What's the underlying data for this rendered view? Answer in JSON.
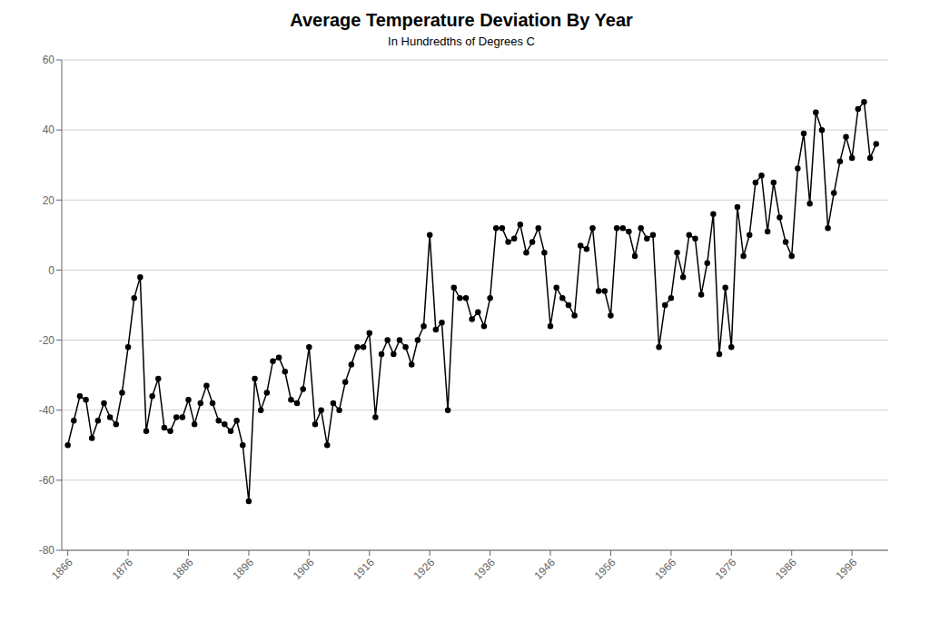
{
  "chart_data": {
    "type": "line",
    "title": "Average Temperature Deviation By Year",
    "subtitle": "In Hundredths of Degrees C",
    "x": [
      1866,
      1867,
      1868,
      1869,
      1870,
      1871,
      1872,
      1873,
      1874,
      1875,
      1876,
      1877,
      1878,
      1879,
      1880,
      1881,
      1882,
      1883,
      1884,
      1885,
      1886,
      1887,
      1888,
      1889,
      1890,
      1891,
      1892,
      1893,
      1894,
      1895,
      1896,
      1897,
      1898,
      1899,
      1900,
      1901,
      1902,
      1903,
      1904,
      1905,
      1906,
      1907,
      1908,
      1909,
      1910,
      1911,
      1912,
      1913,
      1914,
      1915,
      1916,
      1917,
      1918,
      1919,
      1920,
      1921,
      1922,
      1923,
      1924,
      1925,
      1926,
      1927,
      1928,
      1929,
      1930,
      1931,
      1932,
      1933,
      1934,
      1935,
      1936,
      1937,
      1938,
      1939,
      1940,
      1941,
      1942,
      1943,
      1944,
      1945,
      1946,
      1947,
      1948,
      1949,
      1950,
      1951,
      1952,
      1953,
      1954,
      1955,
      1956,
      1957,
      1958,
      1959,
      1960,
      1961,
      1962,
      1963,
      1964,
      1965,
      1966,
      1967,
      1968,
      1969,
      1970,
      1971,
      1972,
      1973,
      1974,
      1975,
      1976,
      1977,
      1978,
      1979,
      1980,
      1981,
      1982,
      1983,
      1984,
      1985,
      1986,
      1987,
      1988,
      1989,
      1990,
      1991,
      1992,
      1993,
      1994,
      1995,
      1996,
      1997,
      1998,
      1999,
      2000
    ],
    "values": [
      -50,
      -43,
      -36,
      -37,
      -48,
      -43,
      -38,
      -42,
      -44,
      -35,
      -22,
      -8,
      -2,
      -46,
      -36,
      -31,
      -45,
      -46,
      -42,
      -42,
      -37,
      -44,
      -38,
      -33,
      -38,
      -43,
      -44,
      -46,
      -43,
      -50,
      -66,
      -31,
      -40,
      -35,
      -26,
      -25,
      -29,
      -37,
      -38,
      -34,
      -22,
      -44,
      -40,
      -50,
      -38,
      -40,
      -32,
      -27,
      -22,
      -22,
      -18,
      -42,
      -24,
      -20,
      -24,
      -20,
      -22,
      -27,
      -20,
      -16,
      10,
      -17,
      -15,
      -40,
      -5,
      -8,
      -8,
      -14,
      -12,
      -16,
      -8,
      12,
      12,
      8,
      9,
      13,
      5,
      8,
      12,
      5,
      -16,
      -5,
      -8,
      -10,
      -13,
      7,
      6,
      12,
      -6,
      -6,
      -13,
      12,
      12,
      11,
      4,
      12,
      9,
      10,
      -22,
      -10,
      -8,
      5,
      -2,
      10,
      9,
      -7,
      2,
      16,
      -24,
      -5,
      -22,
      18,
      4,
      10,
      25,
      27,
      11,
      25,
      15,
      8,
      4,
      29,
      39,
      19,
      45,
      40,
      12,
      22,
      31,
      38,
      32,
      46,
      48,
      32,
      36
    ],
    "color": "#000000",
    "marker": "circle",
    "xlim": [
      1865,
      2002
    ],
    "xticks": [
      1866,
      1876,
      1886,
      1896,
      1906,
      1916,
      1926,
      1936,
      1946,
      1956,
      1966,
      1976,
      1986,
      1996
    ],
    "ylim": [
      -80,
      60
    ],
    "yticks": [
      -80,
      -60,
      -40,
      -20,
      0,
      20,
      40,
      60
    ],
    "grid": "y"
  }
}
